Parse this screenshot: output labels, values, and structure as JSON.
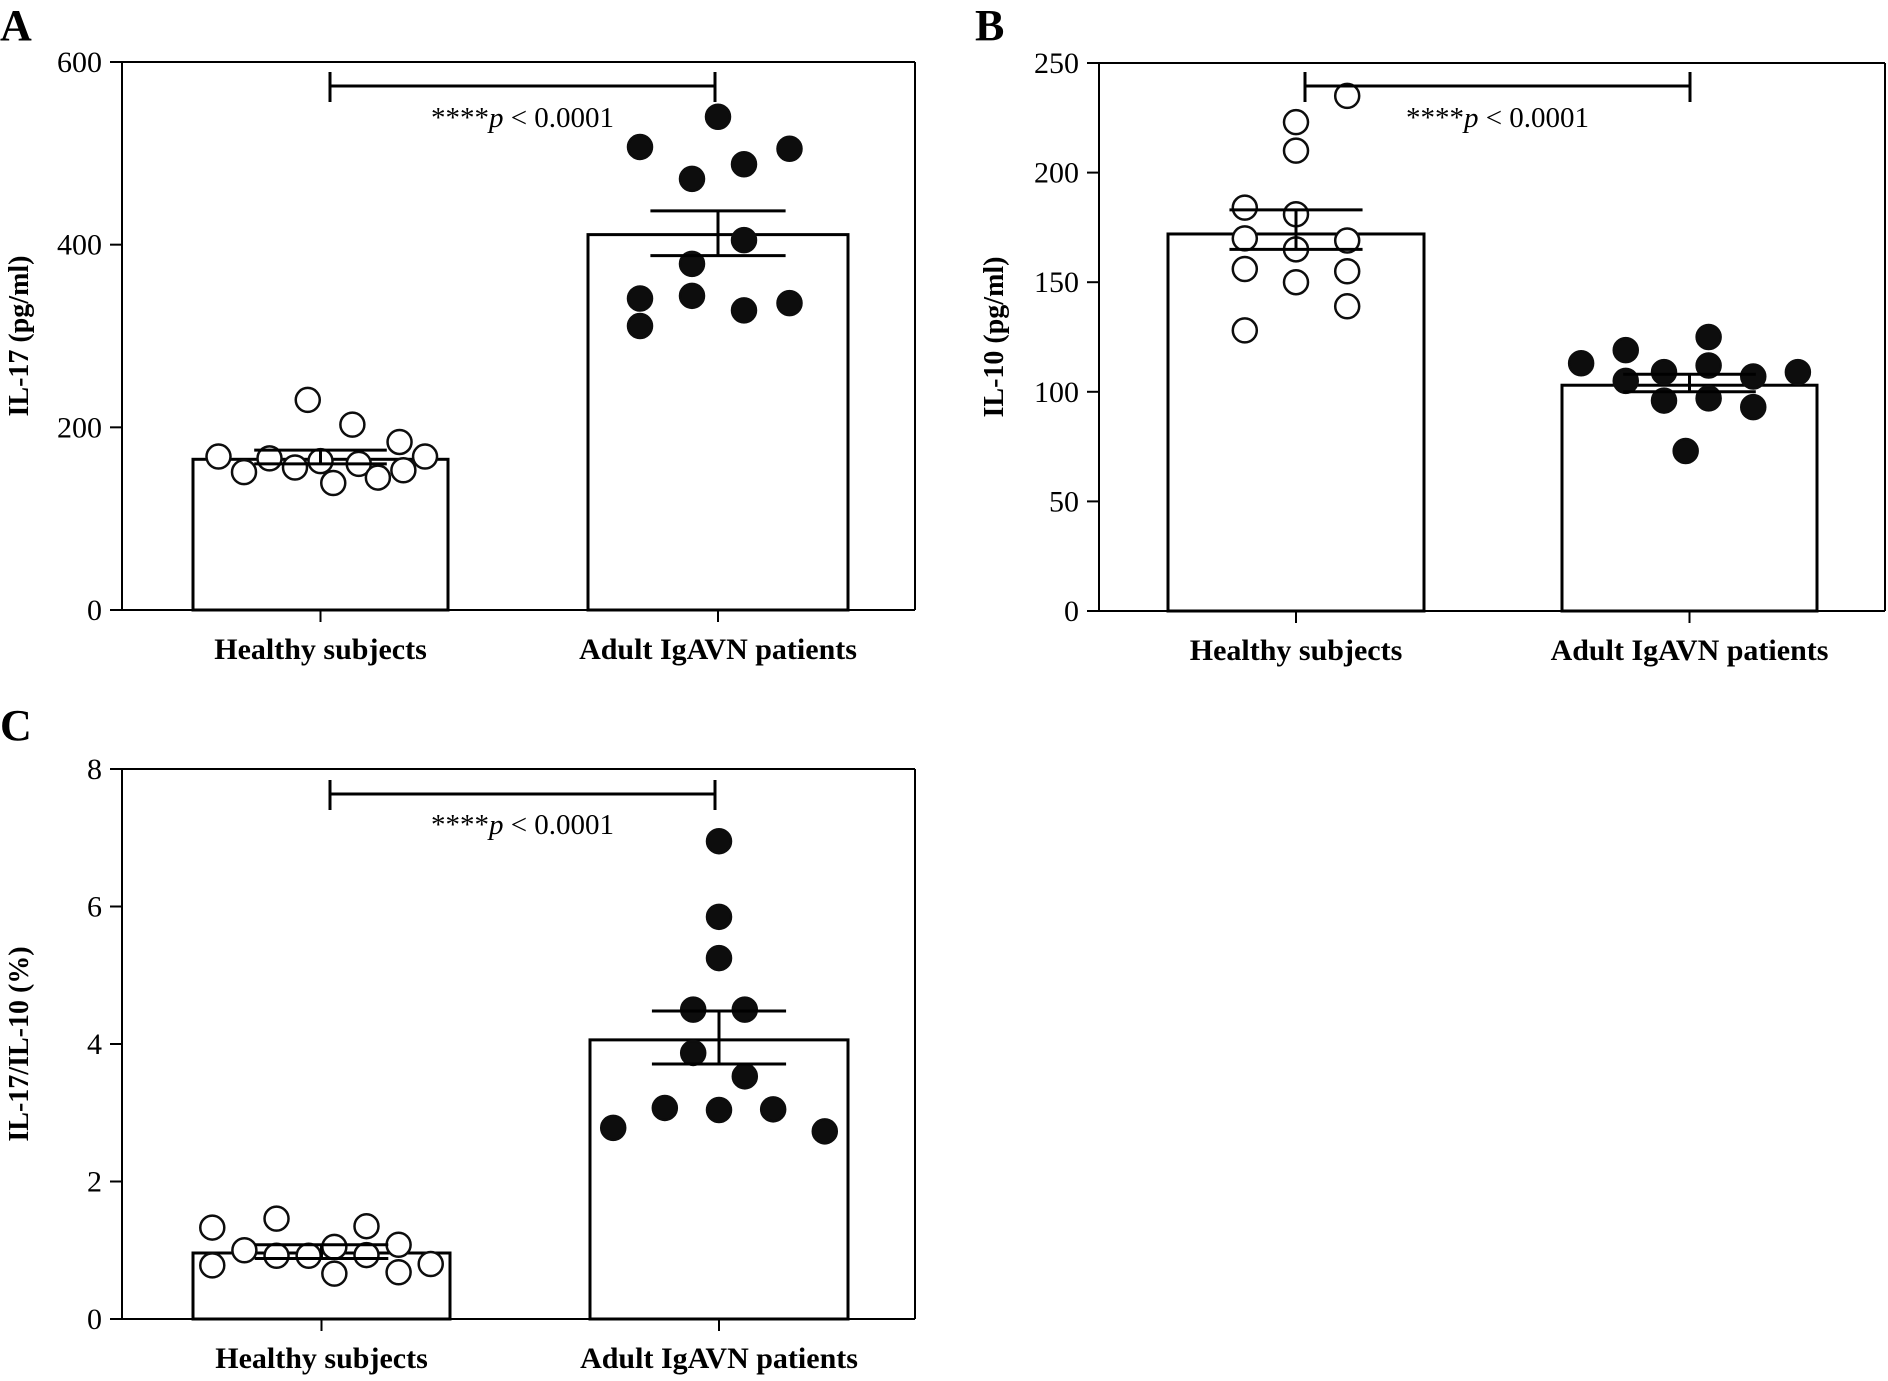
{
  "chart_data": [
    {
      "type": "bar",
      "panel": "A",
      "title": "",
      "xlabel": "",
      "ylabel": "IL-17 (pg/ml)",
      "ylim": [
        0,
        600
      ],
      "yticks": [
        0,
        200,
        400,
        600
      ],
      "categories": [
        "Healthy subjects",
        "Adult IgAVN patients"
      ],
      "series": [
        {
          "name": "Healthy subjects",
          "marker": "open-circle",
          "mean": 165,
          "sem_low": 160,
          "sem_high": 175,
          "points": [
            168,
            151,
            166,
            156,
            163,
            230,
            139,
            203,
            160,
            145,
            184,
            153,
            168
          ]
        },
        {
          "name": "Adult IgAVN patients",
          "marker": "filled-circle",
          "mean": 411,
          "sem_low": 388,
          "sem_high": 437,
          "points": [
            311,
            341,
            507,
            344,
            379,
            472,
            540,
            328,
            405,
            488,
            336,
            505
          ]
        }
      ],
      "annotation": {
        "text_stars": "****",
        "text_p": "p",
        "text_rest": " < 0.0001",
        "between": [
          0,
          1
        ]
      }
    },
    {
      "type": "bar",
      "panel": "B",
      "title": "",
      "xlabel": "",
      "ylabel": "IL-10 (pg/ml)",
      "ylim": [
        0,
        250
      ],
      "yticks": [
        0,
        50,
        100,
        150,
        200,
        250
      ],
      "categories": [
        "Healthy subjects",
        "Adult IgAVN patients"
      ],
      "series": [
        {
          "name": "Healthy subjects",
          "marker": "open-circle",
          "mean": 172,
          "sem_low": 165,
          "sem_high": 183,
          "points": [
            184,
            170,
            156,
            128,
            223,
            210,
            181,
            165,
            150,
            235,
            169,
            155,
            139
          ]
        },
        {
          "name": "Adult IgAVN patients",
          "marker": "filled-circle",
          "mean": 103,
          "sem_low": 100,
          "sem_high": 108,
          "points": [
            113,
            119,
            105,
            109,
            96,
            73,
            125,
            112,
            97,
            107,
            93,
            109
          ]
        }
      ],
      "annotation": {
        "text_stars": "****",
        "text_p": "p",
        "text_rest": " < 0.0001",
        "between": [
          0,
          1
        ]
      }
    },
    {
      "type": "bar",
      "panel": "C",
      "title": "",
      "xlabel": "",
      "ylabel": "IL-17/IL-10 (%)",
      "ylim": [
        0,
        8
      ],
      "yticks": [
        0,
        2,
        4,
        6,
        8
      ],
      "categories": [
        "Healthy subjects",
        "Adult IgAVN patients"
      ],
      "series": [
        {
          "name": "Healthy subjects",
          "marker": "open-circle",
          "mean": 0.96,
          "sem_low": 0.88,
          "sem_high": 1.08,
          "points": [
            1.33,
            0.78,
            1.0,
            1.46,
            0.92,
            0.92,
            1.05,
            0.66,
            1.35,
            0.93,
            1.08,
            0.68,
            0.8
          ]
        },
        {
          "name": "Adult IgAVN patients",
          "marker": "filled-circle",
          "mean": 4.06,
          "sem_low": 3.71,
          "sem_high": 4.48,
          "points": [
            2.78,
            3.07,
            4.5,
            3.87,
            6.95,
            5.85,
            5.25,
            3.04,
            4.5,
            3.53,
            3.05,
            2.73
          ]
        }
      ],
      "annotation": {
        "text_stars": "****",
        "text_p": "p",
        "text_rest": " < 0.0001",
        "between": [
          0,
          1
        ]
      }
    }
  ]
}
